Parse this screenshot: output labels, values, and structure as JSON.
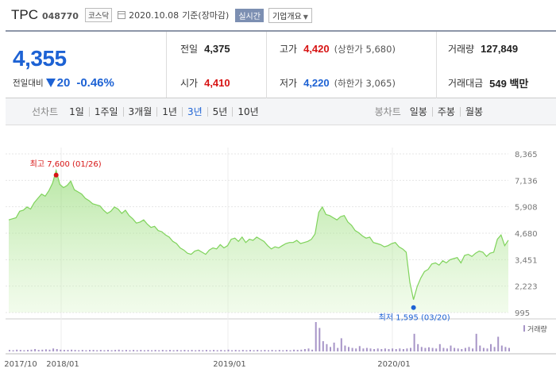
{
  "stock": {
    "name": "TPC",
    "code": "048770",
    "market": "코스닥",
    "date": "2020.10.08",
    "basis": "기준(장마감)",
    "realtime_label": "실시간",
    "corp_label": "기업개요"
  },
  "quote": {
    "current": "4,355",
    "change_label": "전일대비",
    "change": "20",
    "change_pct": "-0.46%",
    "prev_label": "전일",
    "prev": "4,375",
    "high_label": "고가",
    "high": "4,420",
    "upper_limit": "(상한가 5,680)",
    "volume_label": "거래량",
    "volume": "127,849",
    "open_label": "시가",
    "open": "4,410",
    "low_label": "저가",
    "low": "4,220",
    "lower_limit": "(하한가 3,065)",
    "amount_label": "거래대금",
    "amount": "549 백만"
  },
  "periods": {
    "line_label": "선차트",
    "line_options": [
      "1일",
      "1주일",
      "3개월",
      "1년",
      "3년",
      "5년",
      "10년"
    ],
    "active": "3년",
    "candle_label": "봉차트",
    "candle_options": [
      "일봉",
      "주봉",
      "월봉"
    ]
  },
  "colors": {
    "up": "#d71414",
    "down": "#1d62d4",
    "line": "#7fd35b",
    "fill": "#d9f5c8"
  },
  "chart_data": {
    "type": "area",
    "y_ticks": [
      "8,365",
      "7,136",
      "5,908",
      "4,680",
      "3,451",
      "2,223",
      "995"
    ],
    "ylim": [
      995,
      8365
    ],
    "x_labels": [
      "2017/10",
      "2018/01",
      "2019/01",
      "2020/01"
    ],
    "x_range": [
      "2017-10-10",
      "2020-10-08"
    ],
    "high_annotation": "최고 7,600 (01/26)",
    "low_annotation": "최저 1,595 (03/20)",
    "volume_label": "거래량",
    "series": [
      {
        "values": [
          5300,
          5350,
          5400,
          5700,
          5750,
          5900,
          5800,
          6100,
          6300,
          6500,
          6400,
          6650,
          7000,
          7600,
          6950,
          6800,
          6900,
          7100,
          6700,
          6600,
          6500,
          6300,
          6200,
          6050,
          6000,
          5950,
          5750,
          5600,
          5700,
          5900,
          5800,
          5600,
          5750,
          5500,
          5350,
          5150,
          5200,
          5300,
          5100,
          4950,
          5000,
          4800,
          4750,
          4600,
          4500,
          4300,
          4200,
          4000,
          3900,
          3750,
          3700,
          3850,
          3900,
          3800,
          3700,
          3900,
          4000,
          3950,
          4150,
          4000,
          4100,
          4400,
          4450,
          4300,
          4500,
          4250,
          4400,
          4350,
          4500,
          4400,
          4300,
          4100,
          3950,
          4050,
          4000,
          4100,
          4200,
          4250,
          4250,
          4350,
          4200,
          4250,
          4300,
          4400,
          4650,
          5650,
          5900,
          5550,
          5500,
          5400,
          5300,
          5450,
          5500,
          5200,
          5050,
          4800,
          4700,
          4550,
          4450,
          4500,
          4250,
          4200,
          4150,
          4050,
          4100,
          4200,
          4250,
          4050,
          3950,
          3800,
          2400,
          1595,
          2200,
          2600,
          2900,
          3000,
          3250,
          3300,
          3200,
          3400,
          3300,
          3450,
          3500,
          3550,
          3300,
          3650,
          3700,
          3600,
          3750,
          3850,
          3800,
          3600,
          3750,
          3800,
          4400,
          4600,
          4100,
          4355
        ]
      }
    ],
    "volume": [
      0.05,
      0.04,
      0.06,
      0.05,
      0.04,
      0.05,
      0.06,
      0.08,
      0.05,
      0.06,
      0.07,
      0.06,
      0.1,
      0.08,
      0.06,
      0.05,
      0.05,
      0.06,
      0.05,
      0.04,
      0.05,
      0.04,
      0.05,
      0.05,
      0.04,
      0.05,
      0.04,
      0.05,
      0.04,
      0.05,
      0.06,
      0.04,
      0.05,
      0.04,
      0.05,
      0.04,
      0.05,
      0.04,
      0.05,
      0.04,
      0.05,
      0.04,
      0.05,
      0.04,
      0.05,
      0.04,
      0.05,
      0.04,
      0.05,
      0.04,
      0.05,
      0.04,
      0.05,
      0.04,
      0.05,
      0.04,
      0.05,
      0.04,
      0.05,
      0.04,
      0.06,
      0.04,
      0.05,
      0.04,
      0.05,
      0.04,
      0.05,
      0.04,
      0.05,
      0.04,
      0.05,
      0.04,
      0.05,
      0.04,
      0.05,
      0.04,
      0.05,
      0.04,
      0.06,
      0.05,
      0.06,
      0.08,
      0.1,
      0.06,
      1.0,
      0.8,
      0.35,
      0.25,
      0.15,
      0.3,
      0.12,
      0.45,
      0.2,
      0.15,
      0.12,
      0.1,
      0.18,
      0.1,
      0.12,
      0.1,
      0.08,
      0.1,
      0.08,
      0.1,
      0.08,
      0.1,
      0.08,
      0.1,
      0.08,
      0.1,
      0.12,
      0.6,
      0.25,
      0.15,
      0.12,
      0.14,
      0.12,
      0.1,
      0.25,
      0.12,
      0.1,
      0.2,
      0.12,
      0.1,
      0.08,
      0.12,
      0.15,
      0.1,
      0.6,
      0.2,
      0.12,
      0.1,
      0.25,
      0.15,
      0.5,
      0.2,
      0.15,
      0.12
    ]
  }
}
